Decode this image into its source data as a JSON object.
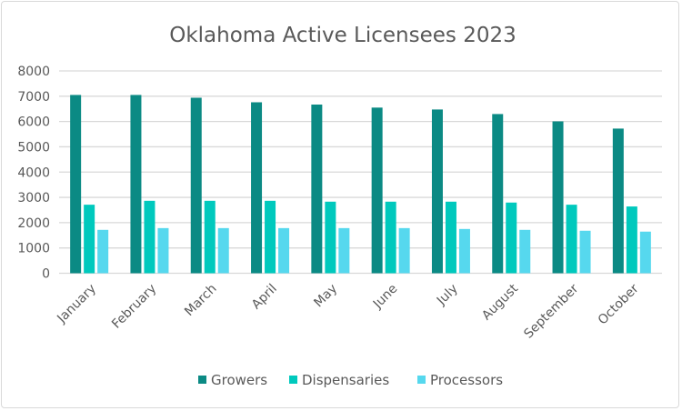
{
  "chart_data": {
    "type": "bar",
    "title": "Oklahoma Active Licensees 2023",
    "xlabel": "",
    "ylabel": "",
    "ylim": [
      0,
      8000
    ],
    "yticks": [
      0,
      1000,
      2000,
      3000,
      4000,
      5000,
      6000,
      7000,
      8000
    ],
    "grid": true,
    "legend_position": "bottom",
    "categories": [
      "January",
      "February",
      "March",
      "April",
      "May",
      "June",
      "July",
      "August",
      "September",
      "October"
    ],
    "series": [
      {
        "name": "Growers",
        "color": "#0b8a84",
        "values": [
          7050,
          7050,
          6940,
          6760,
          6670,
          6550,
          6475,
          6295,
          6005,
          5720
        ]
      },
      {
        "name": "Dispensaries",
        "color": "#00c9bd",
        "values": [
          2710,
          2865,
          2865,
          2865,
          2830,
          2830,
          2830,
          2795,
          2710,
          2640
        ]
      },
      {
        "name": "Processors",
        "color": "#56d8ee",
        "values": [
          1715,
          1785,
          1785,
          1785,
          1785,
          1785,
          1750,
          1715,
          1680,
          1645
        ]
      }
    ]
  }
}
